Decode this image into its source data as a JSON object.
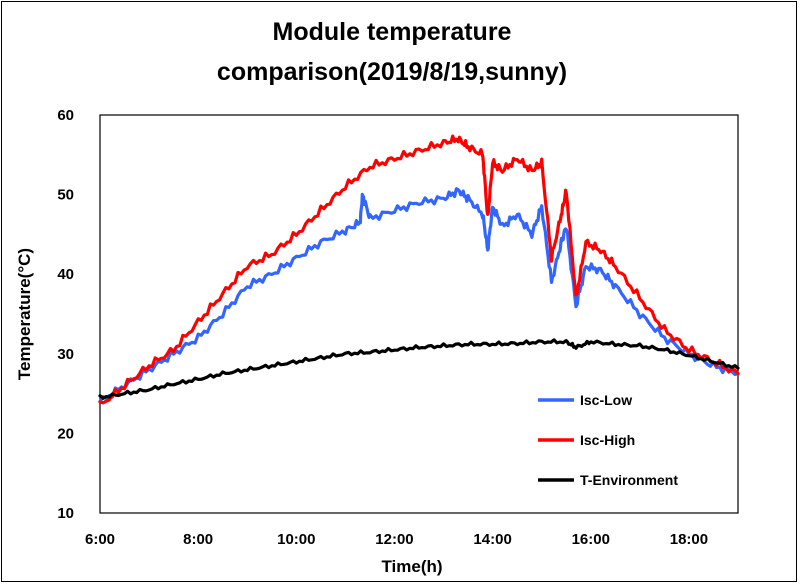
{
  "chart_data": {
    "type": "line",
    "title": [
      "Module temperature",
      "comparison(2019/8/19,sunny)"
    ],
    "xlabel": "Time(h)",
    "ylabel": "Temperature(°C)",
    "xlim": [
      6,
      19
    ],
    "ylim": [
      10,
      60
    ],
    "x_ticks": [
      "6:00",
      "8:00",
      "10:00",
      "12:00",
      "14:00",
      "16:00",
      "18:00"
    ],
    "y_ticks": [
      "10",
      "20",
      "30",
      "40",
      "50",
      "60"
    ],
    "grid": false,
    "legend_position": "lower-right",
    "series": [
      {
        "name": "Isc-Low",
        "color": "#3366ff",
        "x": [
          6.0,
          6.5,
          7.0,
          7.5,
          8.0,
          8.5,
          9.0,
          9.5,
          10.0,
          10.5,
          11.0,
          11.3,
          11.35,
          11.5,
          12.0,
          12.5,
          13.0,
          13.3,
          13.5,
          13.8,
          13.9,
          14.0,
          14.2,
          14.5,
          14.8,
          15.0,
          15.2,
          15.4,
          15.5,
          15.7,
          15.9,
          16.2,
          16.5,
          17.0,
          17.5,
          18.0,
          18.5,
          19.0
        ],
        "values": [
          24,
          26,
          28,
          30,
          32,
          35,
          38.5,
          40,
          42,
          44,
          45.5,
          46.5,
          50,
          47,
          48,
          49,
          49.5,
          50.5,
          49.5,
          47.5,
          43,
          48.5,
          46,
          47.5,
          45,
          48.5,
          39,
          44,
          46,
          36,
          41,
          40.5,
          38.5,
          35,
          32,
          30,
          28.5,
          27.5
        ]
      },
      {
        "name": "Isc-High",
        "color": "#ff0000",
        "x": [
          6.0,
          6.5,
          7.0,
          7.5,
          8.0,
          8.5,
          9.0,
          9.5,
          10.0,
          10.5,
          11.0,
          11.5,
          12.0,
          12.5,
          13.0,
          13.3,
          13.5,
          13.8,
          13.9,
          14.0,
          14.2,
          14.5,
          14.8,
          15.0,
          15.2,
          15.4,
          15.5,
          15.7,
          15.9,
          16.2,
          16.5,
          17.0,
          17.5,
          18.0,
          18.5,
          19.0
        ],
        "values": [
          23.5,
          26,
          28.5,
          30.5,
          34,
          37.5,
          41,
          42.5,
          45,
          48,
          51,
          53.5,
          54.5,
          55.5,
          56.5,
          57,
          56,
          55,
          47,
          54,
          53,
          54.5,
          53,
          54,
          42,
          47.5,
          50.5,
          37,
          44,
          43,
          41,
          37,
          33,
          30.5,
          29,
          27.5
        ]
      },
      {
        "name": "T-Environment",
        "color": "#000000",
        "x": [
          6.0,
          6.5,
          7.0,
          7.5,
          8.0,
          8.5,
          9.0,
          9.5,
          10.0,
          10.5,
          11.0,
          11.5,
          12.0,
          12.5,
          13.0,
          13.5,
          14.0,
          14.5,
          15.0,
          15.5,
          15.7,
          16.0,
          16.5,
          17.0,
          17.5,
          18.0,
          18.5,
          19.0
        ],
        "values": [
          24.5,
          25,
          25.5,
          26.2,
          26.8,
          27.5,
          28,
          28.5,
          29,
          29.5,
          30,
          30.2,
          30.5,
          30.8,
          31,
          31.2,
          31.2,
          31.3,
          31.5,
          31.5,
          30.8,
          31.5,
          31.2,
          31,
          30.5,
          29.8,
          29,
          28.2
        ]
      }
    ]
  }
}
